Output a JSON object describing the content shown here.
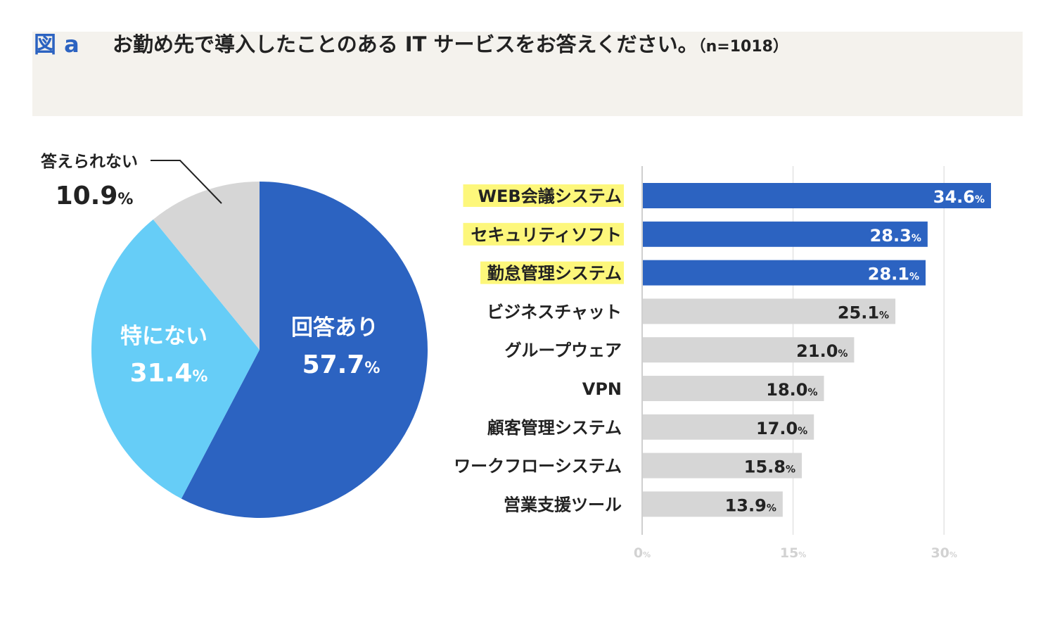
{
  "header": {
    "figure_label": "図 a",
    "question": "お勤め先で導入したことのある IT サービスをお答えください。",
    "sample": "（n=1018）"
  },
  "colors": {
    "primary": "#2c63c1",
    "light_blue": "#66cdf7",
    "gray": "#d6d6d6",
    "highlight": "#fdf77b",
    "header_bg": "#f4f2ed",
    "gridline": "#e3e3e3",
    "tick": "#d2d2d2"
  },
  "chart_data": [
    {
      "type": "pie",
      "title": "",
      "slices": [
        {
          "label": "回答あり",
          "value": 57.7,
          "display": "57.7",
          "unit": "%",
          "color": "#2c63c1",
          "label_color": "#ffffff"
        },
        {
          "label": "特にない",
          "value": 31.4,
          "display": "31.4",
          "unit": "%",
          "color": "#66cdf7",
          "label_color": "#ffffff"
        },
        {
          "label": "答えられない",
          "value": 10.9,
          "display": "10.9",
          "unit": "%",
          "color": "#d6d6d6",
          "label_color": "#222222"
        }
      ]
    },
    {
      "type": "bar",
      "orientation": "horizontal",
      "categories": [
        "WEB会議システム",
        "セキュリティソフト",
        "勤怠管理システム",
        "ビジネスチャット",
        "グループウェア",
        "VPN",
        "顧客管理システム",
        "ワークフローシステム",
        "営業支援ツール"
      ],
      "values": [
        34.6,
        28.3,
        28.1,
        25.1,
        21.0,
        18.0,
        17.0,
        15.8,
        13.9
      ],
      "value_labels": [
        "34.6",
        "28.3",
        "28.1",
        "25.1",
        "21.0",
        "18.0",
        "17.0",
        "15.8",
        "13.9"
      ],
      "highlighted": [
        true,
        true,
        true,
        false,
        false,
        false,
        false,
        false,
        false
      ],
      "unit": "%",
      "xlim": [
        0,
        35
      ],
      "xticks": [
        0,
        15,
        30
      ],
      "xtick_labels": [
        "0",
        "15",
        "30"
      ],
      "grid": true
    }
  ]
}
